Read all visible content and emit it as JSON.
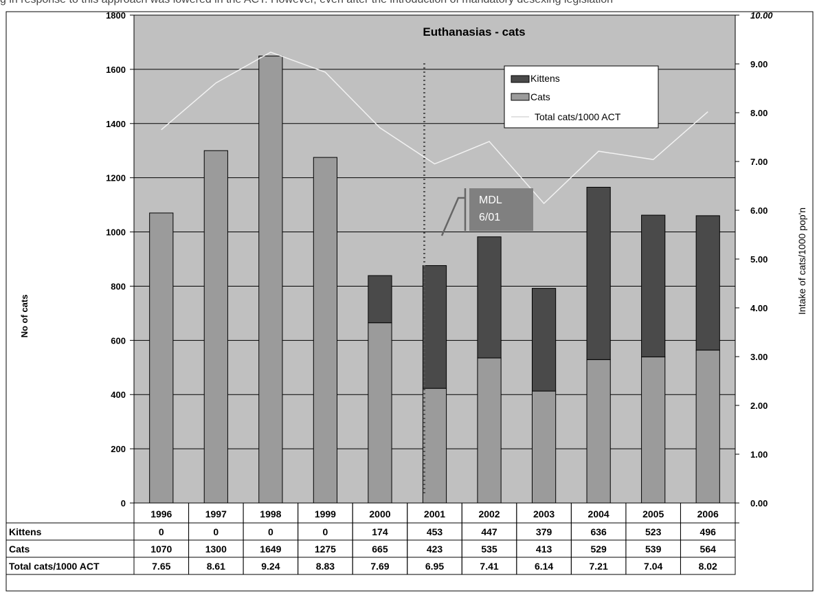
{
  "caption": "g in response to this approach was lowered in the ACT. However, even after the introduction of mandatory desexing legislation",
  "chart_data": {
    "type": "bar",
    "stacked": true,
    "title": "Euthanasias - cats",
    "categories": [
      "1996",
      "1997",
      "1998",
      "1999",
      "2000",
      "2001",
      "2002",
      "2003",
      "2004",
      "2005",
      "2006"
    ],
    "series": [
      {
        "name": "Kittens",
        "color": "#4a4a4a",
        "axis": "left",
        "values": [
          0,
          0,
          0,
          0,
          174,
          453,
          447,
          379,
          636,
          523,
          496
        ]
      },
      {
        "name": "Cats",
        "color": "#9b9b9b",
        "axis": "left",
        "values": [
          1070,
          1300,
          1649,
          1275,
          665,
          423,
          535,
          413,
          529,
          539,
          564
        ]
      },
      {
        "name": "Total cats/1000 ACT",
        "color": "#f2f2f2",
        "axis": "right",
        "type": "line",
        "values": [
          7.65,
          8.61,
          9.24,
          8.83,
          7.69,
          6.95,
          7.41,
          6.14,
          7.21,
          7.04,
          8.02
        ]
      }
    ],
    "ylabel_left": "No of cats",
    "ylabel_right": "Intake of cats/1000 pop'n",
    "ylim_left": [
      0,
      1800
    ],
    "ylim_right": [
      0,
      10
    ],
    "yticks_left": [
      "0",
      "200",
      "400",
      "600",
      "800",
      "1000",
      "1200",
      "1400",
      "1600",
      "1800"
    ],
    "yticks_right": [
      "0.00",
      "1.00",
      "2.00",
      "3.00",
      "4.00",
      "5.00",
      "6.00",
      "7.00",
      "8.00",
      "9.00",
      "10.00"
    ],
    "annotation": {
      "lines": [
        "MDL",
        "6/01"
      ],
      "category": "2001"
    },
    "legend_position": "top-right",
    "grid": true,
    "plot_background": "#c0c0c0",
    "table": {
      "rows": [
        {
          "label": "Kittens",
          "values": [
            "0",
            "0",
            "0",
            "0",
            "174",
            "453",
            "447",
            "379",
            "636",
            "523",
            "496"
          ]
        },
        {
          "label": "Cats",
          "values": [
            "1070",
            "1300",
            "1649",
            "1275",
            "665",
            "423",
            "535",
            "413",
            "529",
            "539",
            "564"
          ]
        },
        {
          "label": "Total cats/1000 ACT",
          "values": [
            "7.65",
            "8.61",
            "9.24",
            "8.83",
            "7.69",
            "6.95",
            "7.41",
            "6.14",
            "7.21",
            "7.04",
            "8.02"
          ]
        }
      ]
    }
  }
}
